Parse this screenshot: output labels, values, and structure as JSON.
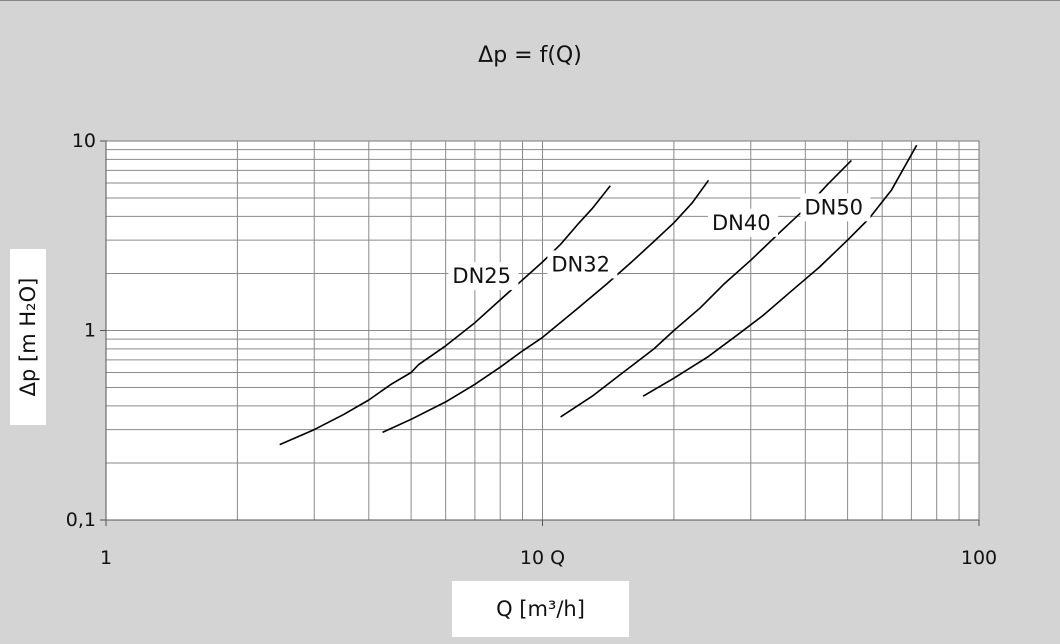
{
  "chart_data": {
    "type": "line",
    "title": "Δp = f(Q)",
    "xlabel": "Q [m³/h]",
    "ylabel": "Δp [m H₂O]",
    "x_scale": "log",
    "y_scale": "log",
    "xlim": [
      1,
      100
    ],
    "ylim": [
      0.1,
      10
    ],
    "x_ticks": [
      "1",
      "10 Q",
      "100"
    ],
    "y_ticks": [
      "0,1",
      "1",
      "10"
    ],
    "grid": true,
    "legend": "none",
    "series": [
      {
        "name": "DN25",
        "color": "#000000",
        "points": [
          [
            2.5,
            0.25
          ],
          [
            3.0,
            0.3
          ],
          [
            3.5,
            0.36
          ],
          [
            4.0,
            0.43
          ],
          [
            4.5,
            0.52
          ],
          [
            5.0,
            0.6
          ],
          [
            5.2,
            0.66
          ],
          [
            6.0,
            0.83
          ],
          [
            7.0,
            1.1
          ],
          [
            8.0,
            1.45
          ],
          [
            9.0,
            1.85
          ],
          [
            10.0,
            2.3
          ],
          [
            11.0,
            2.85
          ],
          [
            12.0,
            3.6
          ],
          [
            13.0,
            4.4
          ],
          [
            14.3,
            5.8
          ]
        ]
      },
      {
        "name": "DN32",
        "color": "#000000",
        "points": [
          [
            4.3,
            0.29
          ],
          [
            5.0,
            0.34
          ],
          [
            6.0,
            0.42
          ],
          [
            7.0,
            0.52
          ],
          [
            8.0,
            0.64
          ],
          [
            9.0,
            0.78
          ],
          [
            10.0,
            0.92
          ],
          [
            12.0,
            1.3
          ],
          [
            14.0,
            1.75
          ],
          [
            16.0,
            2.3
          ],
          [
            18.0,
            2.95
          ],
          [
            20.0,
            3.7
          ],
          [
            22.0,
            4.7
          ],
          [
            24.0,
            6.2
          ]
        ]
      },
      {
        "name": "DN40",
        "color": "#000000",
        "points": [
          [
            11.0,
            0.35
          ],
          [
            13.0,
            0.45
          ],
          [
            15.0,
            0.58
          ],
          [
            18.0,
            0.8
          ],
          [
            20.0,
            1.0
          ],
          [
            23.0,
            1.32
          ],
          [
            26.0,
            1.75
          ],
          [
            30.0,
            2.35
          ],
          [
            35.0,
            3.3
          ],
          [
            40.0,
            4.4
          ],
          [
            45.0,
            5.9
          ],
          [
            51.0,
            7.9
          ]
        ]
      },
      {
        "name": "DN50",
        "color": "#000000",
        "points": [
          [
            17.0,
            0.45
          ],
          [
            20.0,
            0.56
          ],
          [
            24.0,
            0.73
          ],
          [
            28.0,
            0.95
          ],
          [
            32.0,
            1.2
          ],
          [
            37.0,
            1.6
          ],
          [
            43.0,
            2.15
          ],
          [
            50.0,
            3.0
          ],
          [
            56.0,
            3.9
          ],
          [
            63.0,
            5.5
          ],
          [
            72.0,
            9.5
          ]
        ]
      }
    ]
  }
}
